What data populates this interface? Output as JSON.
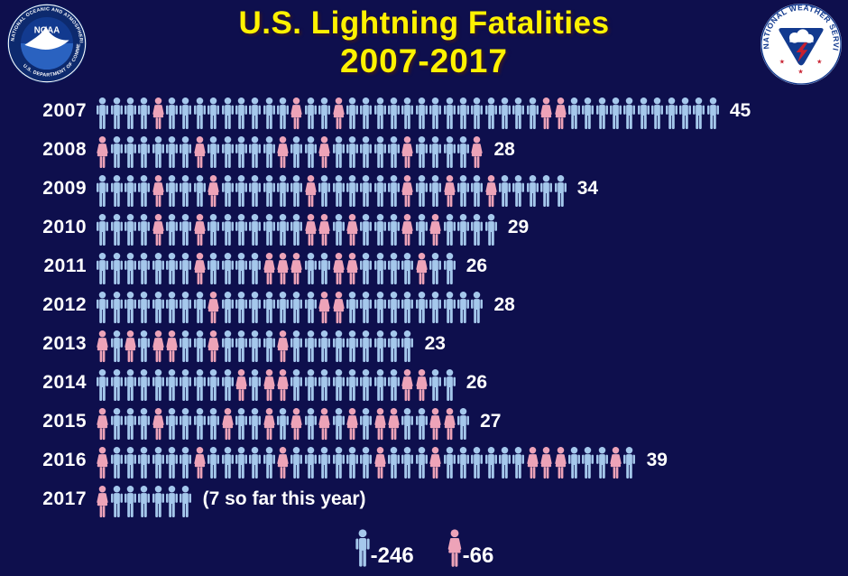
{
  "header": {
    "title_line1": "U.S. Lightning Fatalities",
    "title_line2": "2007-2017"
  },
  "logos": {
    "noaa": {
      "center_label": "NOAA",
      "ring_top": "NATIONAL OCEANIC AND ATMOSPHERIC ADMINISTRATION",
      "ring_bottom": "U.S. DEPARTMENT OF COMMERCE"
    },
    "nws": {
      "ring": "NATIONAL WEATHER SERVICE"
    }
  },
  "chart_data": {
    "type": "bar",
    "subtype": "pictogram",
    "title": "U.S. Lightning Fatalities 2007-2017",
    "unit": "one person icon = one fatality",
    "legend_position": "bottom",
    "categories": [
      "2007",
      "2008",
      "2009",
      "2010",
      "2011",
      "2012",
      "2013",
      "2014",
      "2015",
      "2016",
      "2017"
    ],
    "values": [
      45,
      28,
      34,
      29,
      26,
      28,
      23,
      26,
      27,
      39,
      7
    ],
    "series": [
      {
        "name": "male",
        "values": [
          40,
          22,
          28,
          22,
          19,
          25,
          17,
          21,
          16,
          30,
          6
        ]
      },
      {
        "name": "female",
        "values": [
          5,
          6,
          6,
          7,
          7,
          3,
          6,
          5,
          11,
          9,
          1
        ]
      }
    ],
    "rows": [
      {
        "year": "2007",
        "total": 45,
        "count_label": "45",
        "female_positions": [
          5,
          15,
          18,
          33,
          34
        ]
      },
      {
        "year": "2008",
        "total": 28,
        "count_label": "28",
        "female_positions": [
          1,
          8,
          14,
          17,
          23,
          28
        ]
      },
      {
        "year": "2009",
        "total": 34,
        "count_label": "34",
        "female_positions": [
          5,
          9,
          16,
          23,
          26,
          29
        ]
      },
      {
        "year": "2010",
        "total": 29,
        "count_label": "29",
        "female_positions": [
          5,
          8,
          16,
          17,
          19,
          23,
          25
        ]
      },
      {
        "year": "2011",
        "total": 26,
        "count_label": "26",
        "female_positions": [
          8,
          13,
          14,
          15,
          18,
          19,
          24
        ]
      },
      {
        "year": "2012",
        "total": 28,
        "count_label": "28",
        "female_positions": [
          9,
          17,
          18
        ]
      },
      {
        "year": "2013",
        "total": 23,
        "count_label": "23",
        "female_positions": [
          1,
          3,
          5,
          6,
          9,
          14
        ]
      },
      {
        "year": "2014",
        "total": 26,
        "count_label": "26",
        "female_positions": [
          11,
          13,
          14,
          23,
          24
        ]
      },
      {
        "year": "2015",
        "total": 27,
        "count_label": "27",
        "female_positions": [
          1,
          5,
          10,
          13,
          15,
          17,
          19,
          21,
          22,
          25,
          26
        ]
      },
      {
        "year": "2016",
        "total": 39,
        "count_label": "39",
        "female_positions": [
          1,
          8,
          14,
          21,
          25,
          32,
          33,
          34,
          38
        ]
      },
      {
        "year": "2017",
        "total": 7,
        "count_label": "(7 so far this year)",
        "female_positions": [
          1
        ]
      }
    ],
    "legend": {
      "male_label": "-246",
      "female_label": "-66",
      "male_total": 246,
      "female_total": 66
    }
  },
  "colors": {
    "background": "#0E0F4D",
    "title": "#FFF200",
    "male_icon": "#A5C8EC",
    "female_icon": "#EDA3B8",
    "text": "#FFFFFF"
  }
}
